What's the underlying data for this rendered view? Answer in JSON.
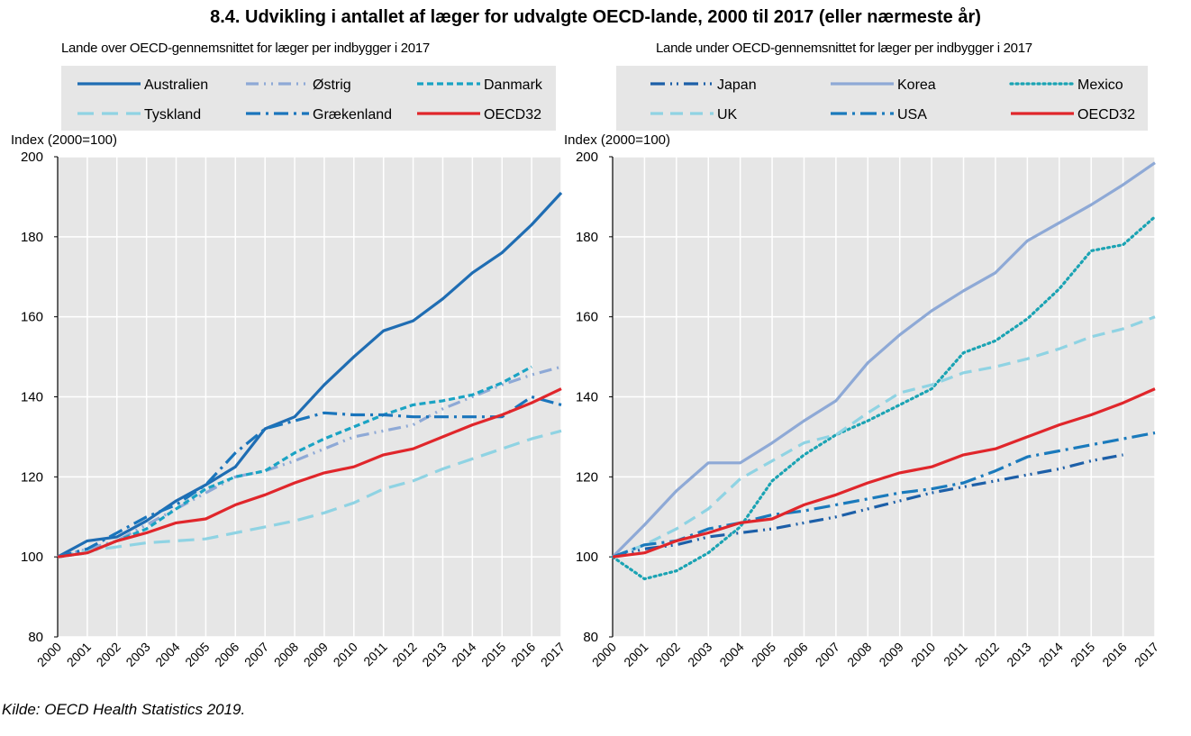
{
  "title": "8.4. Udvikling i antallet af læger for udvalgte OECD-lande, 2000 til 2017 (eller nærmeste år)",
  "source": "Kilde: OECD Health Statistics 2019.",
  "chart_data": [
    {
      "type": "line",
      "subtitle": "Lande over OECD-gennemsnittet for læger per indbygger i 2017",
      "ylabel": "Index (2000=100)",
      "x": [
        2000,
        2001,
        2002,
        2003,
        2004,
        2005,
        2006,
        2007,
        2008,
        2009,
        2010,
        2011,
        2012,
        2013,
        2014,
        2015,
        2016,
        2017
      ],
      "ylim": [
        80,
        200
      ],
      "yticks": [
        80,
        100,
        120,
        140,
        160,
        180,
        200
      ],
      "grid": true,
      "legend": "top",
      "series": [
        {
          "name": "Australien",
          "color": "#1f6db3",
          "dash": "",
          "values": [
            100,
            104,
            105,
            109,
            114,
            118,
            122.5,
            132,
            135,
            143,
            150,
            156.5,
            159,
            164.5,
            171,
            176,
            183,
            191
          ]
        },
        {
          "name": "Østrig",
          "color": "#8ea9d6",
          "dash": "14 6 2 6 2 6",
          "values": [
            100,
            102,
            104,
            108,
            112,
            116,
            120,
            121.5,
            124,
            127,
            130,
            131.5,
            133,
            137,
            140,
            143,
            145.5,
            147.5
          ]
        },
        {
          "name": "Danmark",
          "color": "#1aa3c4",
          "dash": "7 4",
          "values": [
            100,
            101,
            104,
            107,
            112,
            117,
            120,
            121.5,
            126,
            129.5,
            132.5,
            135.5,
            138,
            139,
            140.5,
            143.5,
            147.5,
            null
          ]
        },
        {
          "name": "Tyskland",
          "color": "#8fd3e3",
          "dash": "18 9",
          "values": [
            100,
            101.5,
            102.5,
            103.5,
            104,
            104.5,
            106,
            107.5,
            109,
            111,
            113.5,
            117,
            119,
            122,
            124.5,
            127,
            129.5,
            131.5
          ]
        },
        {
          "name": "Grækenland",
          "color": "#1a75bc",
          "dash": "16 6 3 6",
          "values": [
            100,
            102,
            106,
            110,
            113,
            118,
            126,
            132,
            134,
            136,
            135.5,
            135.5,
            135,
            135,
            135,
            135,
            140,
            138
          ]
        },
        {
          "name": "OECD32",
          "color": "#e0262b",
          "dash": "",
          "values": [
            100,
            101,
            104,
            106,
            108.5,
            109.5,
            113,
            115.5,
            118.5,
            121,
            122.5,
            125.5,
            127,
            130,
            133,
            135.5,
            138.5,
            142
          ]
        }
      ]
    },
    {
      "type": "line",
      "subtitle": "Lande under OECD-gennemsnittet for læger per indbygger i 2017",
      "ylabel": "Index (2000=100)",
      "x": [
        2000,
        2001,
        2002,
        2003,
        2004,
        2005,
        2006,
        2007,
        2008,
        2009,
        2010,
        2011,
        2012,
        2013,
        2014,
        2015,
        2016,
        2017
      ],
      "ylim": [
        80,
        200
      ],
      "yticks": [
        80,
        100,
        120,
        140,
        160,
        180,
        200
      ],
      "grid": true,
      "legend": "top",
      "series": [
        {
          "name": "Japan",
          "color": "#1c5fa8",
          "dash": "16 6 2 5 2 6",
          "values": [
            100,
            102,
            103,
            105,
            106,
            107,
            108.5,
            110,
            112,
            114,
            116,
            117.5,
            119,
            120.5,
            122,
            124,
            125.5,
            null
          ]
        },
        {
          "name": "Korea",
          "color": "#8ea9d6",
          "dash": "",
          "values": [
            100,
            108,
            116.5,
            123.5,
            123.5,
            128.5,
            134,
            139,
            148.5,
            155.5,
            161.5,
            166.5,
            171,
            179,
            183.5,
            188,
            193,
            198.5
          ]
        },
        {
          "name": "Mexico",
          "color": "#1aa3b3",
          "dash": "2 4",
          "values": [
            100,
            94.5,
            96.5,
            101,
            107.5,
            119,
            125.5,
            130.5,
            134,
            138,
            142,
            151,
            154,
            159.5,
            167,
            176.5,
            178,
            185
          ]
        },
        {
          "name": "UK",
          "color": "#8fd3e3",
          "dash": "14 8",
          "values": [
            100,
            103,
            107,
            112,
            119.5,
            124,
            128.5,
            130.5,
            136,
            141,
            143,
            146,
            147.5,
            149.5,
            152,
            155,
            157,
            160
          ]
        },
        {
          "name": "USA",
          "color": "#1a7abc",
          "dash": "18 6 3 6",
          "values": [
            100,
            103,
            104,
            107,
            108.5,
            110.5,
            111.5,
            113,
            114.5,
            116,
            117,
            118.5,
            121.5,
            125,
            126.5,
            128,
            129.5,
            131
          ]
        },
        {
          "name": "OECD32",
          "color": "#e0262b",
          "dash": "",
          "values": [
            100,
            101,
            104,
            106,
            108.5,
            109.5,
            113,
            115.5,
            118.5,
            121,
            122.5,
            125.5,
            127,
            130,
            133,
            135.5,
            138.5,
            142
          ]
        }
      ]
    }
  ]
}
